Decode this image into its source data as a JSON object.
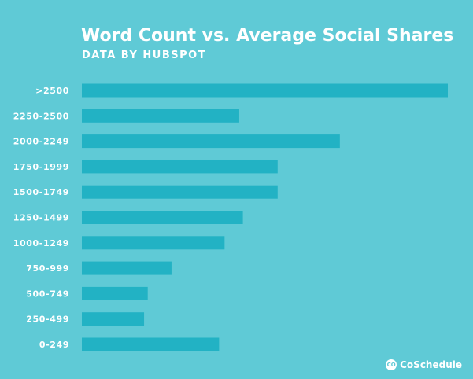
{
  "chart_data": {
    "type": "bar",
    "orientation": "horizontal",
    "title": "Word Count vs. Average Social Shares",
    "subtitle": "DATA BY HUBSPOT",
    "categories": [
      ">2500",
      "2250-2500",
      "2000-2249",
      "1750-1999",
      "1500-1749",
      "1250-1499",
      "1000-1249",
      "750-999",
      "500-749",
      "250-499",
      "0-249"
    ],
    "values": [
      100,
      43,
      70.5,
      53.5,
      53.5,
      44,
      39,
      24.5,
      18,
      17,
      37.5
    ],
    "xlim": [
      0,
      100
    ],
    "xlabel": "",
    "ylabel": "",
    "grid": false,
    "bar_color": "#22b2c4",
    "background_color": "#5fcad6"
  },
  "brand": {
    "name": "CoSchedule",
    "icon": "coschedule-logo-icon",
    "icon_text": "CO"
  }
}
